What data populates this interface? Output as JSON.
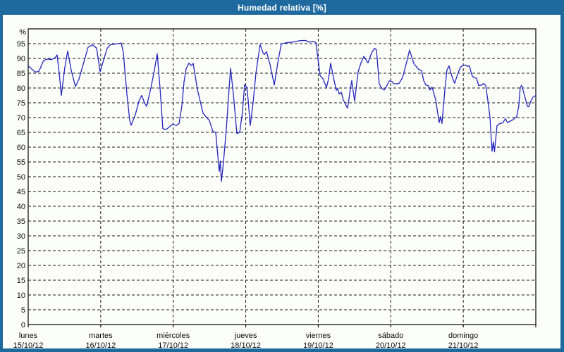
{
  "window": {
    "title": "Humedad relativa [%]"
  },
  "colors": {
    "chrome_blue": "#1e699e",
    "panel_background": "#fcfefa",
    "series_line": "#2424c0",
    "grid": "#1a1a1a",
    "axis": "#000000",
    "label_text": "#0a0a0a",
    "title_text": "#ffffff"
  },
  "chart_data": {
    "type": "line",
    "title": "Humedad relativa [%]",
    "ylabel": "%",
    "xlabel": "",
    "ylim": [
      0,
      100
    ],
    "ytick_step": 5,
    "yticks": [
      0,
      5,
      10,
      15,
      20,
      25,
      30,
      35,
      40,
      45,
      50,
      55,
      60,
      65,
      70,
      75,
      80,
      85,
      90,
      95
    ],
    "grid": "dashed",
    "legend_position": "none",
    "x_axis_days": [
      {
        "day": "lunes",
        "date": "15/10/12"
      },
      {
        "day": "martes",
        "date": "16/10/12"
      },
      {
        "day": "miércoles",
        "date": "17/10/12"
      },
      {
        "day": "jueves",
        "date": "18/10/12"
      },
      {
        "day": "viernes",
        "date": "19/10/12"
      },
      {
        "day": "sábado",
        "date": "20/10/12"
      },
      {
        "day": "domingo",
        "date": "21/10/12"
      }
    ],
    "x_range_days": 7,
    "series": [
      {
        "name": "Humedad relativa",
        "units": "%",
        "points": [
          [
            0,
            87.5
          ],
          [
            0.068,
            86
          ],
          [
            0.097,
            85.4
          ],
          [
            0.146,
            85.6
          ],
          [
            0.214,
            89.3
          ],
          [
            0.272,
            89.8
          ],
          [
            0.321,
            89.6
          ],
          [
            0.369,
            90.2
          ],
          [
            0.399,
            91.2
          ],
          [
            0.428,
            85
          ],
          [
            0.457,
            77.5
          ],
          [
            0.506,
            87
          ],
          [
            0.544,
            92.5
          ],
          [
            0.593,
            86
          ],
          [
            0.651,
            80.5
          ],
          [
            0.7,
            83
          ],
          [
            0.758,
            88
          ],
          [
            0.826,
            93.8
          ],
          [
            0.885,
            94.6
          ],
          [
            0.943,
            93.5
          ],
          [
            0.992,
            85.5
          ],
          [
            1.04,
            89.5
          ],
          [
            1.089,
            93.4
          ],
          [
            1.137,
            94.7
          ],
          [
            1.215,
            94.9
          ],
          [
            1.283,
            95.2
          ],
          [
            1.312,
            92
          ],
          [
            1.361,
            78
          ],
          [
            1.4,
            69
          ],
          [
            1.419,
            67.4
          ],
          [
            1.478,
            71
          ],
          [
            1.526,
            75.5
          ],
          [
            1.565,
            77.5
          ],
          [
            1.604,
            75
          ],
          [
            1.633,
            73.8
          ],
          [
            1.692,
            80
          ],
          [
            1.74,
            86
          ],
          [
            1.779,
            91.6
          ],
          [
            1.818,
            80
          ],
          [
            1.857,
            66.2
          ],
          [
            1.906,
            66
          ],
          [
            1.954,
            67
          ],
          [
            1.993,
            67.8
          ],
          [
            2.042,
            67.3
          ],
          [
            2.081,
            68
          ],
          [
            2.119,
            74
          ],
          [
            2.149,
            82
          ],
          [
            2.178,
            86.5
          ],
          [
            2.217,
            88.4
          ],
          [
            2.246,
            87.6
          ],
          [
            2.275,
            88.3
          ],
          [
            2.333,
            79.5
          ],
          [
            2.372,
            75.5
          ],
          [
            2.411,
            71.5
          ],
          [
            2.45,
            70.3
          ],
          [
            2.499,
            69
          ],
          [
            2.547,
            65.3
          ],
          [
            2.586,
            64.9
          ],
          [
            2.615,
            57
          ],
          [
            2.635,
            51.8
          ],
          [
            2.649,
            55.3
          ],
          [
            2.664,
            48.4
          ],
          [
            2.693,
            55
          ],
          [
            2.732,
            66
          ],
          [
            2.79,
            86.7
          ],
          [
            2.829,
            78
          ],
          [
            2.878,
            64.6
          ],
          [
            2.917,
            65
          ],
          [
            2.956,
            72
          ],
          [
            2.985,
            81.2
          ],
          [
            3.014,
            80.3
          ],
          [
            3.033,
            76
          ],
          [
            3.062,
            67.3
          ],
          [
            3.101,
            75
          ],
          [
            3.14,
            85
          ],
          [
            3.198,
            94.7
          ],
          [
            3.237,
            92
          ],
          [
            3.257,
            91.3
          ],
          [
            3.286,
            92.3
          ],
          [
            3.335,
            88
          ],
          [
            3.393,
            81
          ],
          [
            3.442,
            88.5
          ],
          [
            3.49,
            94.9
          ],
          [
            3.558,
            95.3
          ],
          [
            3.646,
            95.5
          ],
          [
            3.743,
            96
          ],
          [
            3.821,
            96.1
          ],
          [
            3.879,
            95.5
          ],
          [
            3.928,
            95.8
          ],
          [
            3.967,
            95.4
          ],
          [
            3.996,
            90
          ],
          [
            4.025,
            84.2
          ],
          [
            4.064,
            83.2
          ],
          [
            4.113,
            80.2
          ],
          [
            4.142,
            83
          ],
          [
            4.171,
            88.4
          ],
          [
            4.21,
            83.5
          ],
          [
            4.249,
            79.2
          ],
          [
            4.268,
            79.9
          ],
          [
            4.288,
            77.9
          ],
          [
            4.317,
            78.6
          ],
          [
            4.346,
            76
          ],
          [
            4.375,
            74.5
          ],
          [
            4.404,
            73.2
          ],
          [
            4.433,
            78
          ],
          [
            4.462,
            82.5
          ],
          [
            4.501,
            75.6
          ],
          [
            4.55,
            85.5
          ],
          [
            4.589,
            88.5
          ],
          [
            4.628,
            90.7
          ],
          [
            4.686,
            88.5
          ],
          [
            4.735,
            91.8
          ],
          [
            4.774,
            93.4
          ],
          [
            4.803,
            92.9
          ],
          [
            4.841,
            81.4
          ],
          [
            4.88,
            79.8
          ],
          [
            4.909,
            79.3
          ],
          [
            4.948,
            80.8
          ],
          [
            4.978,
            82.4
          ],
          [
            5.017,
            82.2
          ],
          [
            5.046,
            81.4
          ],
          [
            5.114,
            81.5
          ],
          [
            5.162,
            83.5
          ],
          [
            5.211,
            88
          ],
          [
            5.259,
            92.8
          ],
          [
            5.289,
            90.5
          ],
          [
            5.318,
            88.3
          ],
          [
            5.376,
            86.5
          ],
          [
            5.425,
            85.8
          ],
          [
            5.454,
            82.5
          ],
          [
            5.483,
            81
          ],
          [
            5.522,
            80.7
          ],
          [
            5.541,
            79.3
          ],
          [
            5.57,
            80.3
          ],
          [
            5.619,
            76
          ],
          [
            5.667,
            68.3
          ],
          [
            5.687,
            70.3
          ],
          [
            5.706,
            68
          ],
          [
            5.745,
            79
          ],
          [
            5.774,
            86
          ],
          [
            5.803,
            87.5
          ],
          [
            5.842,
            84
          ],
          [
            5.881,
            81.6
          ],
          [
            5.92,
            84.5
          ],
          [
            5.959,
            87
          ],
          [
            5.998,
            87.6
          ],
          [
            6.027,
            87.8
          ],
          [
            6.056,
            87.3
          ],
          [
            6.085,
            87.5
          ],
          [
            6.115,
            84.5
          ],
          [
            6.144,
            83.5
          ],
          [
            6.183,
            83.3
          ],
          [
            6.212,
            80.8
          ],
          [
            6.251,
            81
          ],
          [
            6.28,
            81.5
          ],
          [
            6.309,
            80.9
          ],
          [
            6.338,
            76
          ],
          [
            6.367,
            70.3
          ],
          [
            6.396,
            58.6
          ],
          [
            6.415,
            61.8
          ],
          [
            6.43,
            58.4
          ],
          [
            6.464,
            67.2
          ],
          [
            6.503,
            68
          ],
          [
            6.542,
            68.2
          ],
          [
            6.581,
            69.6
          ],
          [
            6.61,
            68.3
          ],
          [
            6.649,
            68.8
          ],
          [
            6.688,
            69.3
          ],
          [
            6.737,
            70.3
          ],
          [
            6.766,
            74
          ],
          [
            6.785,
            80.2
          ],
          [
            6.805,
            80.9
          ],
          [
            6.844,
            77.5
          ],
          [
            6.883,
            73.8
          ],
          [
            6.902,
            73.7
          ],
          [
            6.931,
            75.5
          ],
          [
            6.961,
            76.9
          ],
          [
            7,
            77.5
          ]
        ]
      }
    ]
  }
}
